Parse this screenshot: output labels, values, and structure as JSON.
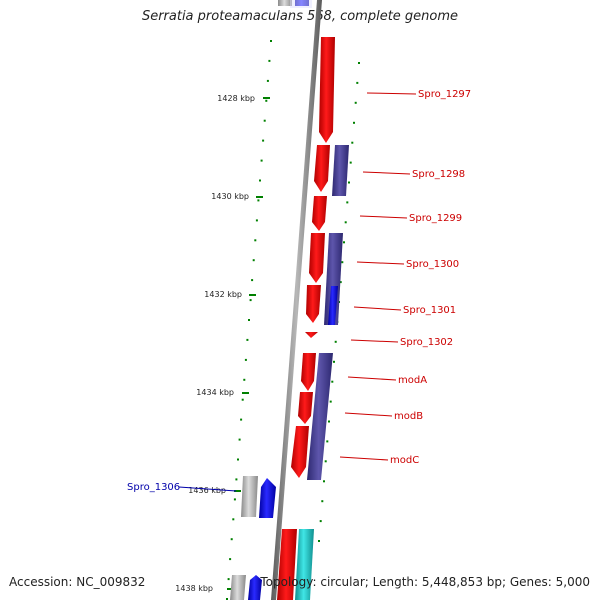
{
  "title": "Serratia proteamaculans 568, complete genome",
  "footer": {
    "accession": "Accession: NC_009832",
    "summary": "Topology: circular; Length: 5,448,853 bp; Genes: 5,000"
  },
  "kbp_labels": [
    "1428 kbp",
    "1430 kbp",
    "1432 kbp",
    "1434 kbp",
    "1436 kbp",
    "1438 kbp"
  ],
  "gene_labels": [
    {
      "text": "Spro_1297",
      "side": "right",
      "color": "#cc0000"
    },
    {
      "text": "Spro_1298",
      "side": "right",
      "color": "#cc0000"
    },
    {
      "text": "Spro_1299",
      "side": "right",
      "color": "#cc0000"
    },
    {
      "text": "Spro_1300",
      "side": "right",
      "color": "#cc0000"
    },
    {
      "text": "Spro_1301",
      "side": "right",
      "color": "#cc0000"
    },
    {
      "text": "Spro_1302",
      "side": "right",
      "color": "#cc0000"
    },
    {
      "text": "modA",
      "side": "right",
      "color": "#cc0000"
    },
    {
      "text": "modB",
      "side": "right",
      "color": "#cc0000"
    },
    {
      "text": "modC",
      "side": "right",
      "color": "#cc0000"
    },
    {
      "text": "Spro_1306",
      "side": "left",
      "color": "#0000aa"
    }
  ],
  "colors": {
    "backbone": "#808080",
    "forward_gene": "#ee0000",
    "reverse_gene": "#1010ee",
    "cog_purple": "#4a4290",
    "cog_cyan": "#22c8c8",
    "cog_gray": "#b0b0b0",
    "tick": "#008000"
  }
}
